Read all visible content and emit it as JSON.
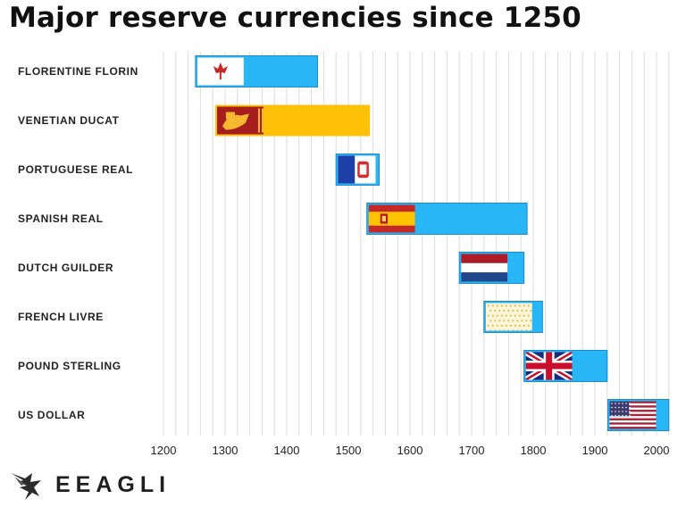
{
  "page": {
    "title": "Major reserve currencies since 1250"
  },
  "brand": {
    "name": "EEAGLI"
  },
  "chart_data": {
    "type": "bar",
    "title": "Major reserve currencies since 1250",
    "xlabel": "",
    "ylabel": "",
    "xlim": [
      1200,
      2020
    ],
    "x_ticks": [
      1200,
      1300,
      1400,
      1500,
      1600,
      1700,
      1800,
      1900,
      2000
    ],
    "grid": "vertical",
    "colors": {
      "primary_bar": "#29b6f6",
      "ducat_bar": "#ffc107",
      "bar_border": "#1e88c8"
    },
    "categories": [
      "FLORENTINE FLORIN",
      "VENETIAN DUCAT",
      "PORTUGUESE REAL",
      "SPANISH REAL",
      "DUTCH GUILDER",
      "FRENCH LIVRE",
      "POUND STERLING",
      "US DOLLAR"
    ],
    "bars": [
      {
        "name": "FLORENTINE FLORIN",
        "start": 1252,
        "end": 1450,
        "flag": "florence-flag-icon"
      },
      {
        "name": "VENETIAN DUCAT",
        "start": 1284,
        "end": 1535,
        "flag": "venice-flag-icon"
      },
      {
        "name": "PORTUGUESE REAL",
        "start": 1480,
        "end": 1550,
        "flag": "portugal-flag-icon"
      },
      {
        "name": "SPANISH REAL",
        "start": 1530,
        "end": 1790,
        "flag": "spain-flag-icon"
      },
      {
        "name": "DUTCH GUILDER",
        "start": 1680,
        "end": 1785,
        "flag": "netherlands-flag-icon"
      },
      {
        "name": "FRENCH LIVRE",
        "start": 1720,
        "end": 1815,
        "flag": "france-flag-icon"
      },
      {
        "name": "POUND STERLING",
        "start": 1785,
        "end": 1920,
        "flag": "uk-flag-icon"
      },
      {
        "name": "US DOLLAR",
        "start": 1921,
        "end": 2020,
        "flag": "us-flag-icon"
      }
    ]
  }
}
